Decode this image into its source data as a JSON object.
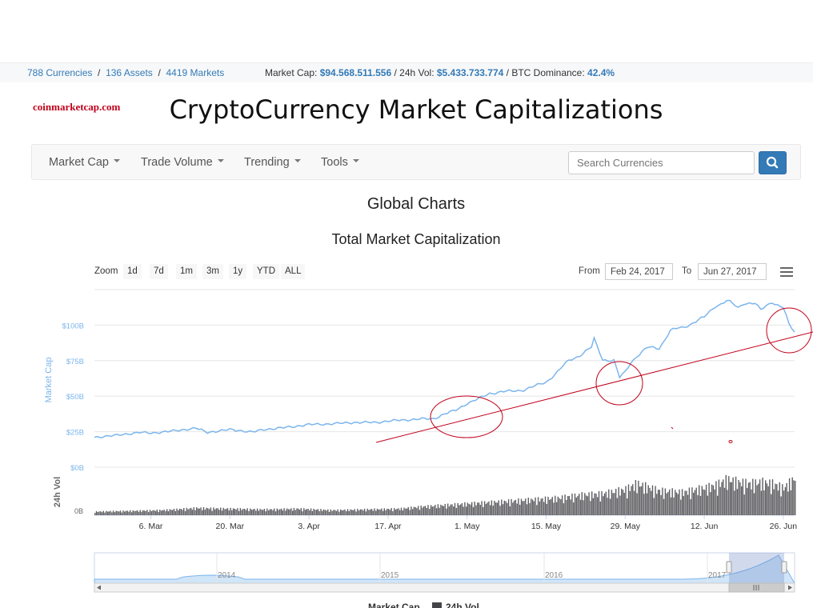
{
  "topbar": {
    "currencies": "788 Currencies",
    "assets": "136 Assets",
    "markets": "4419 Markets",
    "market_cap_label": "Market Cap:",
    "market_cap_value": "$94.568.511.556",
    "vol_label": "24h Vol:",
    "vol_value": "$5.433.733.774",
    "dominance_label": "BTC Dominance:",
    "dominance_value": "42.4%"
  },
  "brand": "coinmarketcap.com",
  "page_title": "CryptoCurrency Market Capitalizations",
  "nav": {
    "items": [
      "Market Cap",
      "Trade Volume",
      "Trending",
      "Tools"
    ],
    "search_placeholder": "Search Currencies"
  },
  "headings": {
    "global": "Global Charts",
    "total": "Total Market Capitalization"
  },
  "zoom": {
    "label": "Zoom",
    "buttons": [
      "1d",
      "7d",
      "1m",
      "3m",
      "1y",
      "YTD",
      "ALL"
    ]
  },
  "range": {
    "from_label": "From",
    "from_value": "Feb 24, 2017",
    "to_label": "To",
    "to_value": "Jun 27, 2017"
  },
  "icons": {
    "search": "search-icon",
    "menu": "hamburger-menu-icon",
    "nav_left": "arrow-left-icon",
    "nav_right": "arrow-right-icon",
    "scroll": "scrollbar-grip-icon"
  },
  "colors": {
    "series_market_cap": "#7cb5ec",
    "series_volume": "#434348",
    "annotation": "#c0001a",
    "link": "#337ab7"
  },
  "chart_data": {
    "type": "line",
    "ylabel": "Market Cap",
    "ylabel_volume": "24h Vol",
    "ylim": [
      0,
      125
    ],
    "y_unit": "B",
    "yticks": [
      "$0B",
      "$25B",
      "$50B",
      "$75B",
      "$100B"
    ],
    "ytick_values": [
      0,
      25,
      50,
      75,
      100
    ],
    "volume_ytick": "0B",
    "x_start_day": 0,
    "x_end_day": 124,
    "x_ticks": [
      {
        "label": "6. Mar",
        "day": 10
      },
      {
        "label": "20. Mar",
        "day": 24
      },
      {
        "label": "3. Apr",
        "day": 38
      },
      {
        "label": "17. Apr",
        "day": 52
      },
      {
        "label": "1. May",
        "day": 66
      },
      {
        "label": "15. May",
        "day": 80
      },
      {
        "label": "29. May",
        "day": 94
      },
      {
        "label": "12. Jun",
        "day": 108
      },
      {
        "label": "26. Jun",
        "day": 122
      }
    ],
    "series": [
      {
        "name": "Market Cap",
        "x": [
          0,
          4,
          8,
          10,
          14,
          18,
          20,
          24,
          28,
          30,
          34,
          38,
          42,
          46,
          50,
          52,
          54,
          58,
          60,
          62,
          64,
          66,
          68,
          70,
          72,
          74,
          76,
          78,
          80,
          82,
          84,
          86,
          88,
          88.5,
          90,
          92,
          93,
          94,
          95,
          96,
          98,
          100,
          102,
          104,
          106,
          108,
          110,
          112,
          114,
          115,
          116,
          117,
          118,
          120,
          122,
          123,
          124
        ],
        "values": [
          21,
          22.5,
          24.5,
          24,
          25.5,
          27.5,
          24.5,
          26.5,
          24.8,
          26.5,
          28,
          30,
          30.5,
          31.5,
          31.5,
          32.5,
          33,
          34,
          34,
          37.5,
          40,
          45,
          48,
          52,
          53,
          53.5,
          54.5,
          57,
          60,
          67,
          75,
          79,
          84,
          90,
          76,
          75,
          63,
          67,
          74,
          78,
          84,
          84,
          96,
          98,
          102,
          105,
          114,
          117,
          112,
          116,
          116,
          115,
          110,
          117,
          112,
          100,
          95
        ]
      },
      {
        "name": "24h Vol",
        "x": [
          0,
          6,
          12,
          18,
          24,
          30,
          36,
          42,
          48,
          54,
          58,
          62,
          66,
          70,
          74,
          78,
          82,
          86,
          90,
          94,
          96,
          100,
          104,
          108,
          110,
          112,
          114,
          116,
          118,
          120,
          122,
          124
        ],
        "values": [
          0.5,
          0.6,
          0.7,
          1.0,
          0.9,
          0.8,
          0.9,
          0.7,
          0.8,
          0.9,
          1.2,
          1.4,
          1.6,
          1.8,
          2.0,
          2.2,
          2.4,
          2.8,
          3.0,
          3.6,
          4.4,
          3.4,
          3.2,
          3.8,
          4.2,
          5.0,
          4.6,
          4.4,
          4.6,
          4.4,
          3.8,
          5.2
        ]
      }
    ],
    "annotations": [
      "trendline",
      "circle-early-may",
      "circle-late-may",
      "circle-late-june"
    ],
    "navigator": {
      "years": [
        "2014",
        "2015",
        "2016",
        "2017"
      ]
    },
    "legend": {
      "placement": "bottom-center",
      "items": [
        "Market Cap",
        "24h Vol"
      ]
    }
  }
}
